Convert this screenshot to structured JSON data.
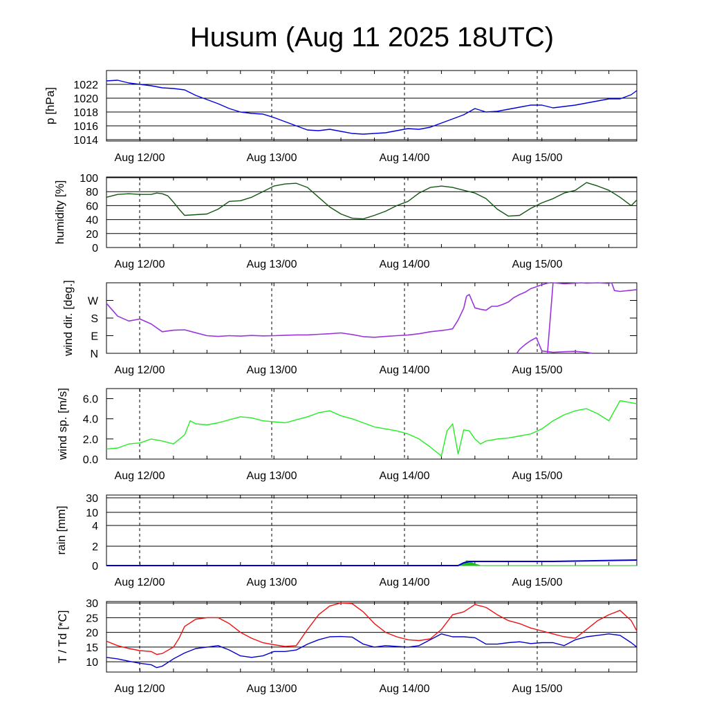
{
  "title": "Husum (Aug 11 2025 18UTC)",
  "colors": {
    "pressure": "#0000dd",
    "humidity": "#115511",
    "wind_dir": "#9933dd",
    "wind_sp": "#22ee22",
    "rain_total": "#0000cc",
    "rain_hourly": "#22bb22",
    "temperature": "#ee1111",
    "dewpoint": "#0000cc"
  },
  "chart_data": [
    {
      "type": "line",
      "name": "pressure",
      "ylabel": "p [hPa]",
      "ylim": [
        1013.8,
        1024.0
      ],
      "yticks": [
        1014,
        1016,
        1018,
        1020,
        1022
      ],
      "xticks": [
        "Aug 12/00",
        "Aug 13/00",
        "Aug 14/00",
        "Aug 15/00"
      ],
      "grid": true,
      "series": [
        {
          "x": [
            0,
            2,
            4,
            6,
            8,
            10,
            12,
            14,
            16,
            18,
            20,
            22,
            24,
            26,
            28,
            30,
            32,
            34,
            36,
            38,
            40,
            42,
            44,
            46,
            48,
            50,
            52,
            54,
            56,
            58,
            60,
            62,
            64,
            66,
            68,
            70,
            72,
            74,
            76,
            78,
            80,
            82,
            84,
            86,
            88,
            90,
            92,
            94,
            95
          ],
          "values": [
            1022.5,
            1022.6,
            1022.2,
            1022.0,
            1021.8,
            1021.5,
            1021.4,
            1021.2,
            1020.4,
            1019.8,
            1019.2,
            1018.5,
            1018.0,
            1017.8,
            1017.7,
            1017.2,
            1016.6,
            1016.0,
            1015.4,
            1015.3,
            1015.5,
            1015.2,
            1014.9,
            1014.8,
            1014.9,
            1015.0,
            1015.3,
            1015.6,
            1015.5,
            1015.8,
            1016.4,
            1017.0,
            1017.6,
            1018.5,
            1018.0,
            1018.1,
            1018.4,
            1018.7,
            1019.0,
            1019.0,
            1018.6,
            1018.8,
            1019.0,
            1019.3,
            1019.6,
            1019.9,
            1019.9,
            1020.5,
            1021.1
          ]
        }
      ]
    },
    {
      "type": "line",
      "name": "humidity",
      "ylabel": "humidity [%]",
      "ylim": [
        0,
        101
      ],
      "yticks": [
        0,
        20,
        40,
        60,
        80,
        100
      ],
      "xticks": [
        "Aug 12/00",
        "Aug 13/00",
        "Aug 14/00",
        "Aug 15/00"
      ],
      "grid": true,
      "series": [
        {
          "x": [
            0,
            2,
            4,
            6,
            8,
            9,
            10,
            11,
            12,
            13,
            14,
            16,
            18,
            20,
            22,
            24,
            26,
            28,
            30,
            32,
            34,
            36,
            38,
            40,
            42,
            44,
            46,
            48,
            50,
            52,
            54,
            56,
            58,
            60,
            62,
            64,
            66,
            68,
            70,
            72,
            74,
            76,
            78,
            80,
            82,
            84,
            86,
            88,
            90,
            92,
            94,
            95
          ],
          "values": [
            72,
            76,
            77,
            76,
            76,
            78,
            77,
            74,
            65,
            55,
            46,
            47,
            48,
            55,
            66,
            67,
            72,
            80,
            88,
            91,
            92,
            86,
            72,
            58,
            48,
            42,
            41,
            46,
            52,
            60,
            66,
            78,
            86,
            88,
            86,
            82,
            78,
            70,
            55,
            45,
            46,
            56,
            64,
            70,
            78,
            82,
            93,
            88,
            82,
            72,
            60,
            68
          ]
        }
      ]
    },
    {
      "type": "scatter",
      "name": "wind_direction",
      "ylabel": "wind dir. [deg.]",
      "ylim": [
        0,
        360
      ],
      "yticks": [
        "N",
        "E",
        "S",
        "W"
      ],
      "ytick_values": [
        0,
        90,
        180,
        270
      ],
      "xticks": [
        "Aug 12/00",
        "Aug 13/00",
        "Aug 14/00",
        "Aug 15/00"
      ],
      "grid": false,
      "segments": [
        {
          "x": [
            0,
            2,
            4,
            6,
            8,
            10,
            12,
            14,
            16,
            18,
            20,
            22,
            24,
            26,
            28,
            30,
            32,
            34,
            36,
            38,
            40,
            42,
            44,
            46,
            48,
            50,
            52,
            54,
            56,
            58,
            60,
            61,
            62,
            63,
            64,
            64.5
          ],
          "values": [
            255,
            190,
            165,
            175,
            150,
            110,
            118,
            120,
            105,
            90,
            86,
            90,
            88,
            91,
            89,
            90,
            92,
            94,
            94,
            97,
            100,
            104,
            96,
            85,
            82,
            86,
            90,
            93,
            100,
            110,
            116,
            120,
            125,
            170,
            230,
            292
          ]
        },
        {
          "x": [
            64.5,
            65,
            66,
            67,
            68,
            69,
            70,
            71,
            72,
            73,
            74,
            75,
            76,
            77,
            78,
            79,
            79.5
          ],
          "values": [
            292,
            300,
            232,
            225,
            220,
            240,
            240,
            250,
            262,
            285,
            300,
            312,
            330,
            340,
            350,
            358,
            360
          ]
        },
        {
          "x": [
            79,
            80,
            82,
            84,
            85,
            86,
            88,
            90,
            90.5
          ],
          "values": [
            0,
            360,
            355,
            358,
            360,
            358,
            360,
            357,
            360
          ]
        },
        {
          "x": [
            73.5,
            74,
            75,
            76,
            76.5,
            77,
            78,
            80,
            82,
            84,
            86,
            87
          ],
          "values": [
            0,
            20,
            45,
            65,
            72,
            80,
            12,
            5,
            8,
            10,
            5,
            0
          ]
        },
        {
          "x": [
            90.5,
            91,
            92,
            94,
            95
          ],
          "values": [
            360,
            320,
            316,
            322,
            325
          ]
        }
      ]
    },
    {
      "type": "line",
      "name": "wind_speed",
      "ylabel": "wind sp. [m/s]",
      "ylim": [
        0,
        7.0
      ],
      "yticks": [
        0.0,
        2.0,
        4.0,
        6.0
      ],
      "ytick_labels": [
        "0.0",
        "2.0",
        "4.0",
        "6.0"
      ],
      "xticks": [
        "Aug 12/00",
        "Aug 13/00",
        "Aug 14/00",
        "Aug 15/00"
      ],
      "grid": false,
      "series": [
        {
          "x": [
            0,
            2,
            4,
            6,
            8,
            10,
            12,
            14,
            15,
            16,
            18,
            20,
            22,
            24,
            26,
            28,
            30,
            32,
            34,
            36,
            38,
            40,
            42,
            44,
            46,
            48,
            50,
            52,
            54,
            56,
            58,
            60,
            61,
            62,
            63,
            64,
            65,
            66,
            67,
            68,
            70,
            72,
            74,
            76,
            78,
            80,
            82,
            84,
            86,
            88,
            90,
            92,
            94,
            95
          ],
          "values": [
            1.0,
            1.1,
            1.5,
            1.6,
            2.0,
            1.8,
            1.5,
            2.4,
            3.8,
            3.5,
            3.4,
            3.6,
            3.9,
            4.2,
            4.1,
            3.8,
            3.7,
            3.6,
            3.9,
            4.2,
            4.6,
            4.8,
            4.3,
            4.0,
            3.6,
            3.2,
            3.0,
            2.8,
            2.5,
            2.0,
            1.2,
            0.3,
            2.8,
            3.5,
            0.5,
            2.9,
            2.8,
            2.0,
            1.5,
            1.8,
            2.0,
            2.1,
            2.3,
            2.5,
            3.0,
            3.8,
            4.4,
            4.8,
            5.0,
            4.5,
            3.8,
            5.8,
            5.6,
            5.5
          ]
        }
      ]
    },
    {
      "type": "area",
      "name": "rain",
      "ylabel": "rain [mm]",
      "ytick_labels": [
        "0",
        "2",
        "4",
        "10",
        "30"
      ],
      "ytick_values": [
        0,
        2,
        4,
        10,
        30
      ],
      "xticks": [
        "Aug 12/00",
        "Aug 13/00",
        "Aug 14/00",
        "Aug 15/00"
      ],
      "grid": true,
      "series": [
        {
          "x": [
            0,
            63,
            64,
            65,
            70,
            80,
            95
          ],
          "values": [
            0,
            0,
            0.2,
            0.3,
            0.3,
            0.3,
            0.4
          ]
        },
        {
          "x": [
            0,
            63,
            64,
            64.5,
            65,
            66,
            67,
            95
          ],
          "values": [
            0,
            0,
            0.1,
            0.3,
            0.25,
            0.1,
            0,
            0
          ]
        }
      ]
    },
    {
      "type": "line",
      "name": "temperature_dewpoint",
      "ylabel": "T / Td [*C]",
      "ylim": [
        6.5,
        30.5
      ],
      "yticks": [
        10,
        15,
        20,
        25,
        30
      ],
      "xticks": [
        "Aug 12/00",
        "Aug 13/00",
        "Aug 14/00",
        "Aug 15/00"
      ],
      "grid": true,
      "series": [
        {
          "x": [
            0,
            2,
            4,
            6,
            8,
            9,
            10,
            12,
            13,
            14,
            16,
            18,
            20,
            22,
            24,
            26,
            28,
            30,
            32,
            34,
            36,
            38,
            40,
            42,
            44,
            46,
            48,
            50,
            52,
            54,
            56,
            58,
            60,
            62,
            64,
            66,
            68,
            70,
            72,
            74,
            76,
            78,
            80,
            82,
            84,
            86,
            88,
            90,
            92,
            94,
            95
          ],
          "values": [
            17,
            15.5,
            14.5,
            13.8,
            13.5,
            12.5,
            12.8,
            15,
            18,
            22,
            24.5,
            25.0,
            25.0,
            23,
            20,
            18,
            16.5,
            15.8,
            15.2,
            15.5,
            21,
            26,
            29,
            30,
            29.8,
            27,
            23,
            20,
            18.5,
            17.5,
            17.2,
            17.8,
            21,
            26,
            27,
            29.5,
            28.5,
            26,
            24,
            23,
            21.5,
            20.5,
            19.5,
            18.5,
            18,
            21,
            24,
            26,
            27.5,
            24,
            20.5
          ]
        },
        {
          "x": [
            0,
            2,
            4,
            6,
            8,
            9,
            10,
            12,
            14,
            16,
            18,
            20,
            22,
            24,
            26,
            28,
            30,
            32,
            34,
            36,
            38,
            40,
            42,
            44,
            46,
            48,
            50,
            52,
            54,
            56,
            58,
            60,
            62,
            64,
            66,
            68,
            70,
            72,
            74,
            76,
            78,
            80,
            82,
            84,
            86,
            88,
            90,
            92,
            94,
            95
          ],
          "values": [
            11.5,
            11,
            10.2,
            9.5,
            9,
            8,
            8.5,
            11,
            13,
            14.5,
            15,
            15.5,
            14,
            12,
            11.5,
            12,
            13.5,
            13.5,
            14,
            16,
            17.5,
            18.5,
            18.6,
            18.4,
            16,
            15,
            15.5,
            15.2,
            15,
            15.5,
            17.5,
            19.5,
            18.5,
            18.5,
            18.2,
            16,
            16,
            16.5,
            16.8,
            16.2,
            16.5,
            16.5,
            15.5,
            17.5,
            18.5,
            19,
            19.5,
            19,
            16.5,
            15
          ]
        }
      ]
    }
  ]
}
